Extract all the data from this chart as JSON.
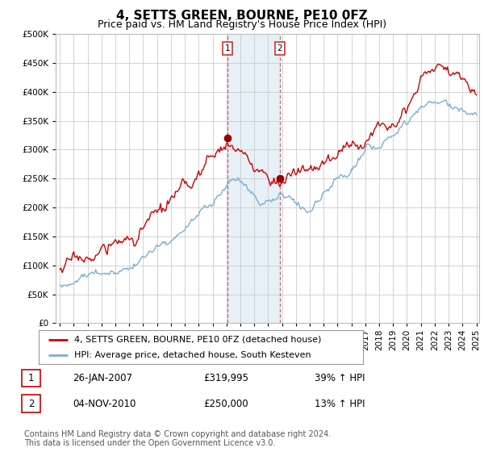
{
  "title": "4, SETTS GREEN, BOURNE, PE10 0FZ",
  "subtitle": "Price paid vs. HM Land Registry's House Price Index (HPI)",
  "background_color": "#ffffff",
  "plot_background_color": "#ffffff",
  "grid_color": "#cccccc",
  "ylim": [
    0,
    500000
  ],
  "yticks": [
    0,
    50000,
    100000,
    150000,
    200000,
    250000,
    300000,
    350000,
    400000,
    450000,
    500000
  ],
  "x_start_year": 1995,
  "x_end_year": 2025,
  "sale1_date": 2007.07,
  "sale1_price": 319995,
  "sale1_label": "1",
  "sale2_date": 2010.84,
  "sale2_price": 250000,
  "sale2_label": "2",
  "red_line_color": "#cc0000",
  "blue_line_color": "#7bafd4",
  "sale_marker_color": "#990000",
  "shade_color": "#cfe3f0",
  "shade_alpha": 0.5,
  "vline_color": "#cc6666",
  "legend_label_red": "4, SETTS GREEN, BOURNE, PE10 0FZ (detached house)",
  "legend_label_blue": "HPI: Average price, detached house, South Kesteven",
  "table_row1": [
    "1",
    "26-JAN-2007",
    "£319,995",
    "39% ↑ HPI"
  ],
  "table_row2": [
    "2",
    "04-NOV-2010",
    "£250,000",
    "13% ↑ HPI"
  ],
  "footnote": "Contains HM Land Registry data © Crown copyright and database right 2024.\nThis data is licensed under the Open Government Licence v3.0.",
  "title_fontsize": 11,
  "subtitle_fontsize": 9,
  "axis_fontsize": 7.5,
  "legend_fontsize": 8,
  "table_fontsize": 8.5,
  "footnote_fontsize": 7
}
